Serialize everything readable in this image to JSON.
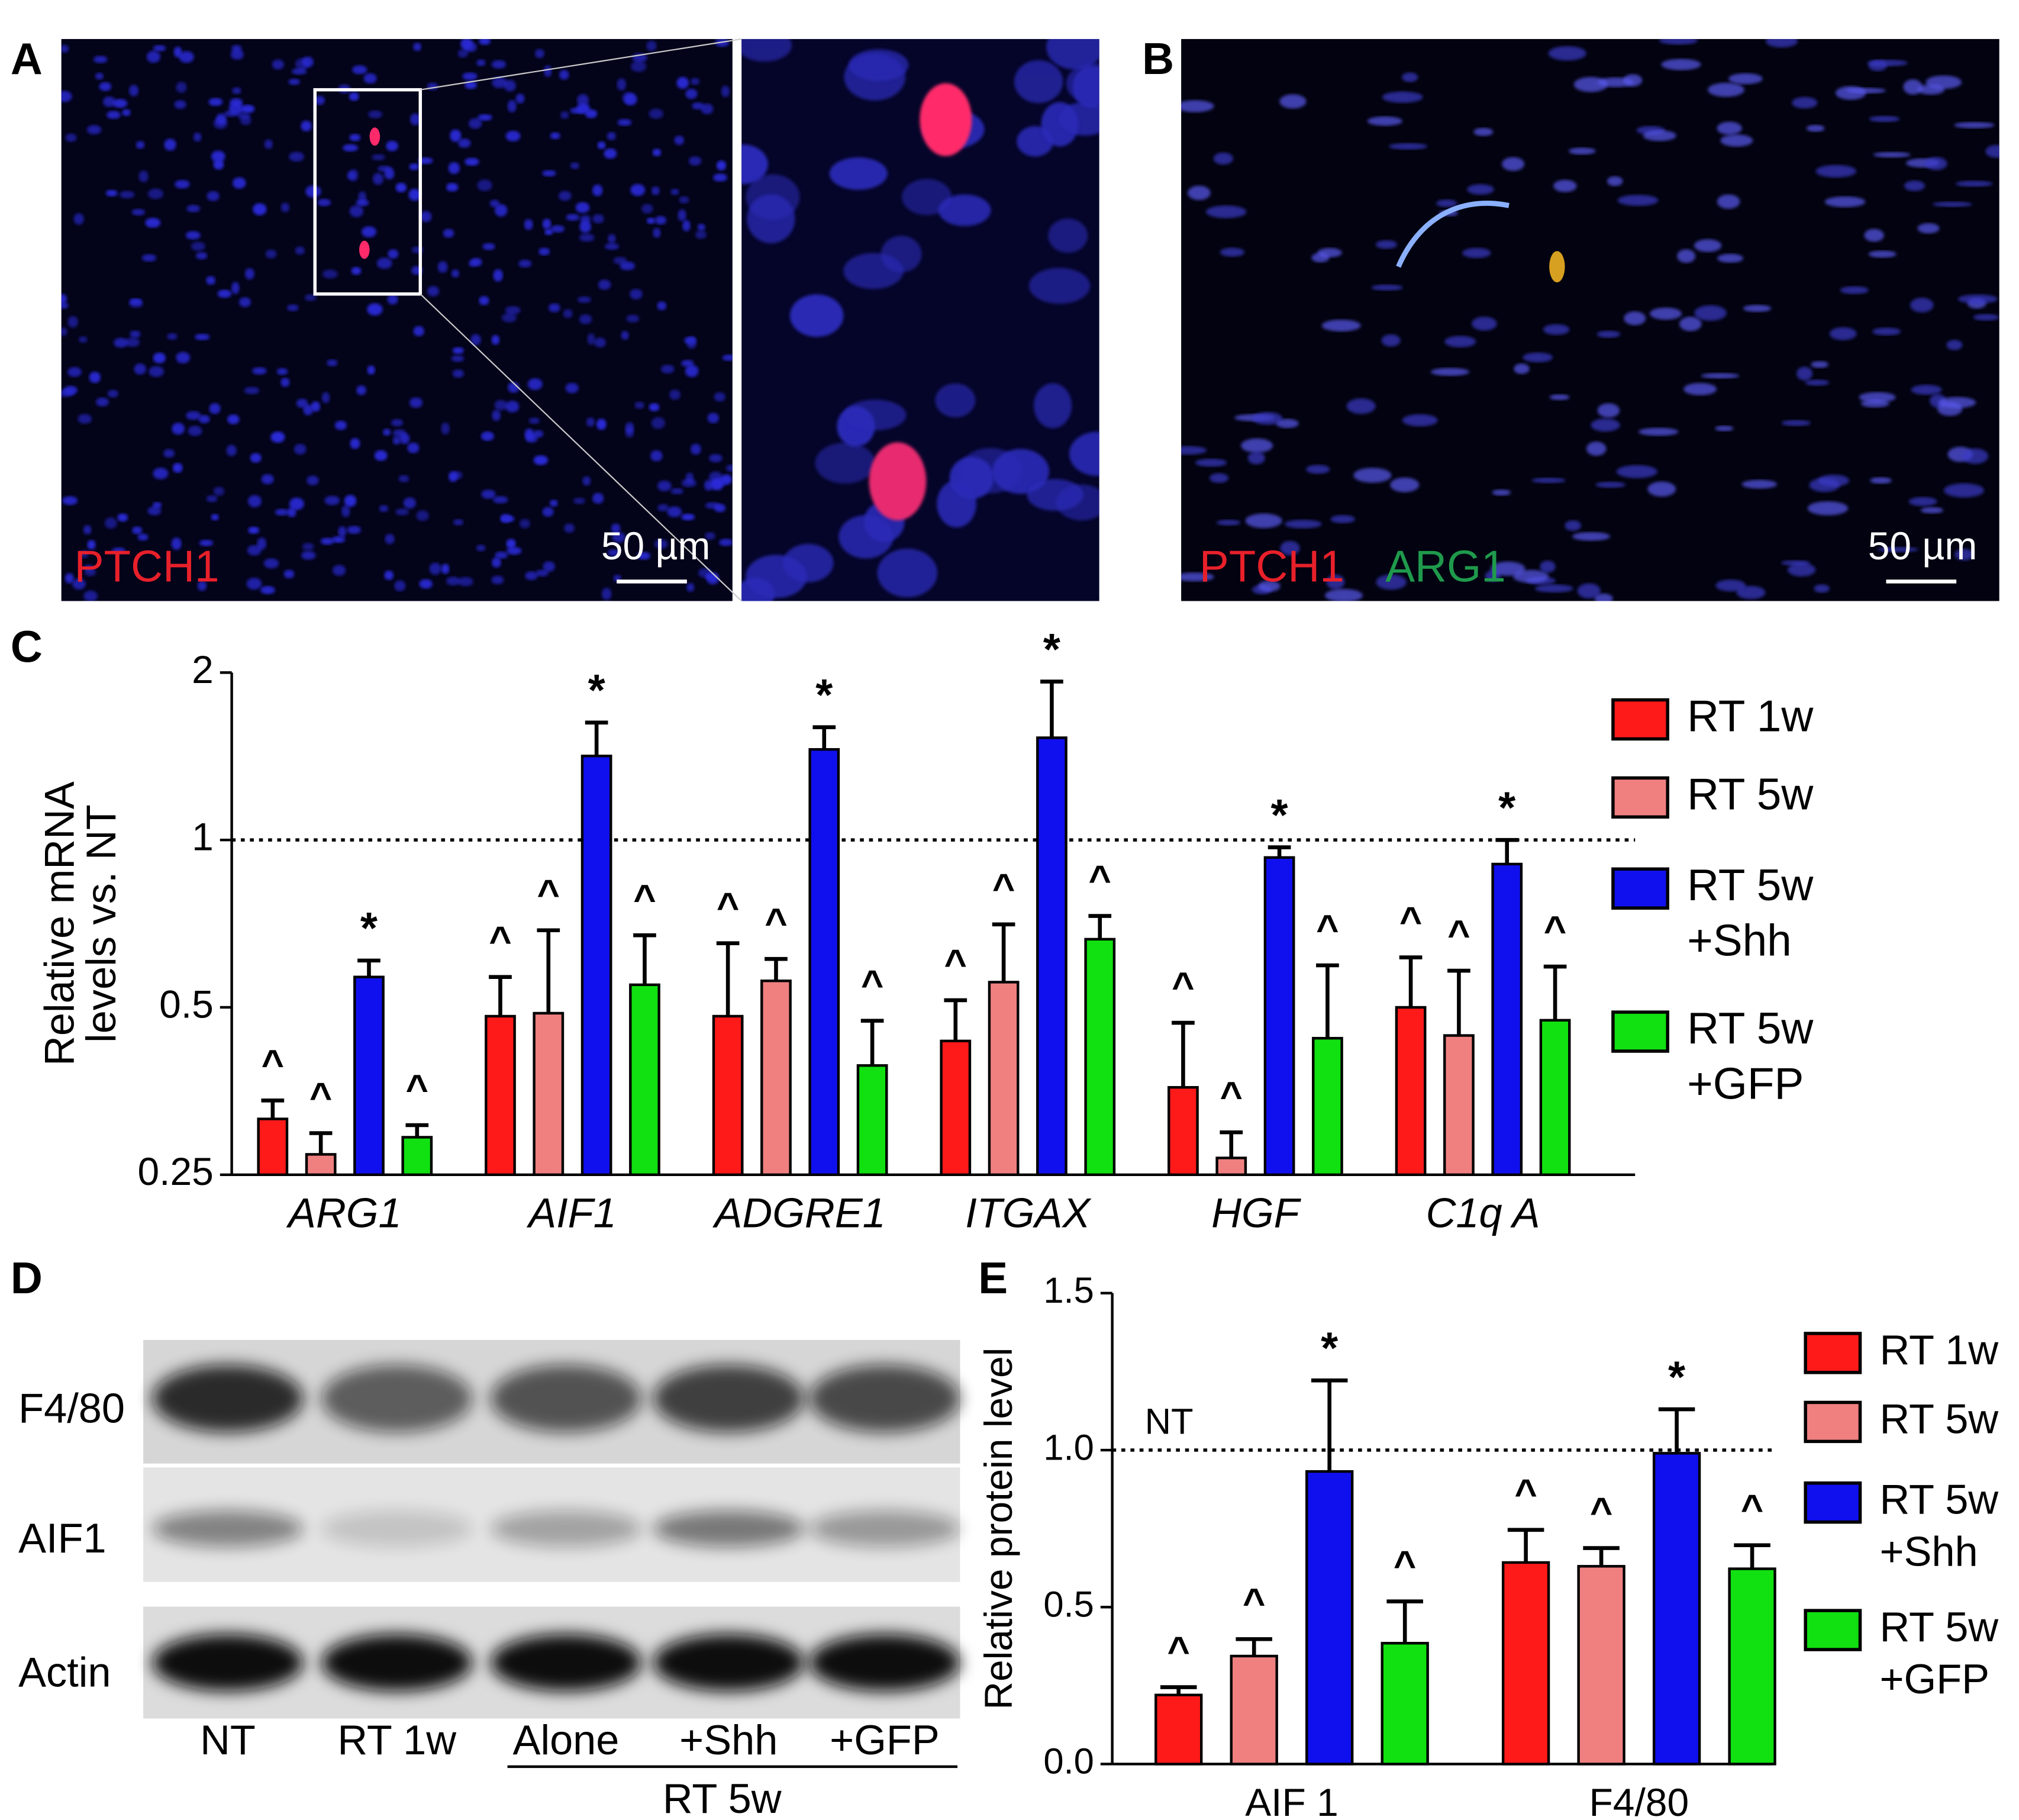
{
  "images": [
    {
      "label": "A",
      "stains": [
        {
          "text": "PTCH1",
          "color": "#e8202a"
        }
      ],
      "scale_bar": "50 µm"
    },
    {
      "label": "B",
      "stains": [
        {
          "text": "PTCH1",
          "color": "#e8202a"
        },
        {
          "text": "ARG1",
          "color": "#1f9a4c"
        }
      ],
      "scale_bar": "50 µm"
    }
  ],
  "blot": {
    "label": "D",
    "rows": [
      "F4/80",
      "AIF1",
      "Actin"
    ],
    "lanes": [
      "NT",
      "RT 1w",
      "Alone",
      "+Shh",
      "+GFP"
    ],
    "group": "RT 5w"
  },
  "chart_data": [
    {
      "type": "bar",
      "panel_label": "C",
      "ylabel": [
        "Relative mRNA",
        "levels vs. NT"
      ],
      "categories": [
        "ARG1",
        "AIF1",
        "ADGRE1",
        "ITGAX",
        "HGF",
        "C1q A"
      ],
      "ylog": 2,
      "ylim": [
        0.25,
        2
      ],
      "yticks": [
        0.25,
        0.5,
        1,
        2
      ],
      "reference_line": 1,
      "series": [
        {
          "name": "RT 1w",
          "color": "#ff1a1a",
          "values": [
            0.315,
            0.482,
            0.482,
            0.435,
            0.359,
            0.5
          ],
          "errors": [
            0.025,
            0.085,
            0.17,
            0.08,
            0.11,
            0.115
          ],
          "annotations": [
            "^",
            "^",
            "^",
            "^",
            "^",
            "^"
          ]
        },
        {
          "name": "RT 5w",
          "color": "#f08080",
          "values": [
            0.272,
            0.488,
            0.558,
            0.555,
            0.268,
            0.445
          ],
          "errors": [
            0.025,
            0.2,
            0.053,
            0.15,
            0.03,
            0.137
          ],
          "annotations": [
            "^",
            "^",
            "^",
            "^",
            "^",
            "^"
          ]
        },
        {
          "name": "RT 5w\n+Shh",
          "color": "#1010ee",
          "values": [
            0.567,
            1.416,
            1.455,
            1.527,
            0.93,
            0.905
          ],
          "errors": [
            0.04,
            0.21,
            0.14,
            0.4,
            0.04,
            0.095
          ],
          "annotations": [
            "*",
            "*",
            "*",
            "*",
            "*",
            "*"
          ]
        },
        {
          "name": "RT 5w\n+GFP",
          "color": "#11e011",
          "values": [
            0.292,
            0.549,
            0.393,
            0.663,
            0.44,
            0.474
          ],
          "errors": [
            0.015,
            0.125,
            0.08,
            0.067,
            0.155,
            0.118
          ],
          "annotations": [
            "^",
            "^",
            "^",
            "^",
            "^",
            "^"
          ]
        }
      ]
    },
    {
      "type": "bar",
      "panel_label": "E",
      "ylabel": "Relative protein level",
      "categories": [
        "AIF 1",
        "F4/80"
      ],
      "ylim": [
        0,
        1.5
      ],
      "yticks": [
        {
          "value": 0,
          "label": "0.0"
        },
        0.5,
        {
          "value": 1,
          "label": "1.0"
        },
        1.5
      ],
      "reference_line": {
        "value": 1,
        "label": "NT"
      },
      "series": [
        {
          "name": "RT 1w",
          "color": "#ff1a1a",
          "values": [
            0.22,
            0.642
          ],
          "errors": [
            0.025,
            0.104
          ],
          "annotations": [
            "^",
            "^"
          ]
        },
        {
          "name": "RT 5w",
          "color": "#f08080",
          "values": [
            0.344,
            0.63
          ],
          "errors": [
            0.054,
            0.058
          ],
          "annotations": [
            "^",
            "^"
          ]
        },
        {
          "name": "RT 5w\n+Shh",
          "color": "#1010ee",
          "values": [
            0.932,
            0.99
          ],
          "errors": [
            0.29,
            0.14
          ],
          "annotations": [
            "*",
            "*"
          ]
        },
        {
          "name": "RT 5w\n+GFP",
          "color": "#11e011",
          "values": [
            0.385,
            0.622
          ],
          "errors": [
            0.133,
            0.075
          ],
          "annotations": [
            "^",
            "^"
          ]
        }
      ]
    }
  ]
}
